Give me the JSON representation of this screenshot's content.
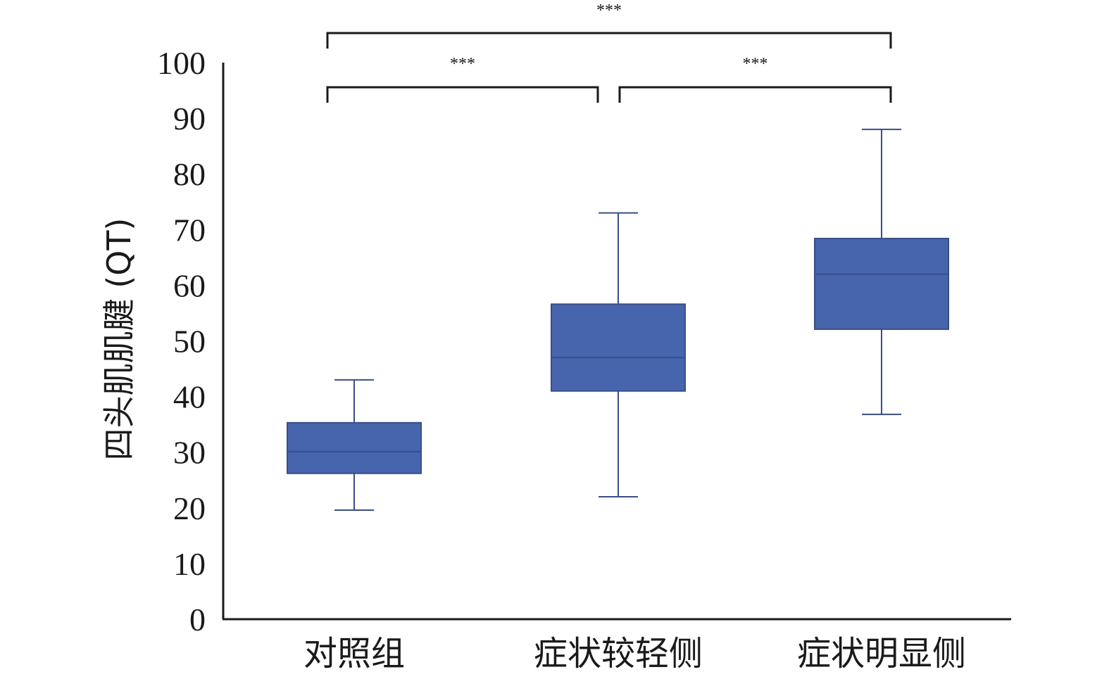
{
  "chart_data": {
    "type": "box",
    "title": "",
    "xlabel": "",
    "ylabel": "四头肌肌腱 (QT)",
    "ylim": [
      0,
      100
    ],
    "yticks": [
      0,
      10,
      20,
      30,
      40,
      50,
      60,
      70,
      80,
      90,
      100
    ],
    "grid": false,
    "legend": "none",
    "box_color": "#4665AD",
    "line_color": "#3A4E86",
    "categories": [
      "对照组",
      "症状较轻侧",
      "症状明显侧"
    ],
    "series": [
      {
        "values": [
          {
            "min": 19.6,
            "q1": 26.2,
            "median": 30.1,
            "q3": 35.3,
            "max": 43.0
          },
          {
            "min": 22.0,
            "q1": 41.0,
            "median": 47.0,
            "q3": 56.6,
            "max": 73.0
          },
          {
            "min": 36.8,
            "q1": 52.1,
            "median": 62.0,
            "q3": 68.4,
            "max": 88.0
          }
        ]
      }
    ],
    "annotations": [
      {
        "from": "对照组",
        "to": "症状较轻侧",
        "label": "***"
      },
      {
        "from": "症状较轻侧",
        "to": "症状明显侧",
        "label": "***"
      },
      {
        "from": "对照组",
        "to": "症状明显侧",
        "label": "***"
      }
    ]
  }
}
